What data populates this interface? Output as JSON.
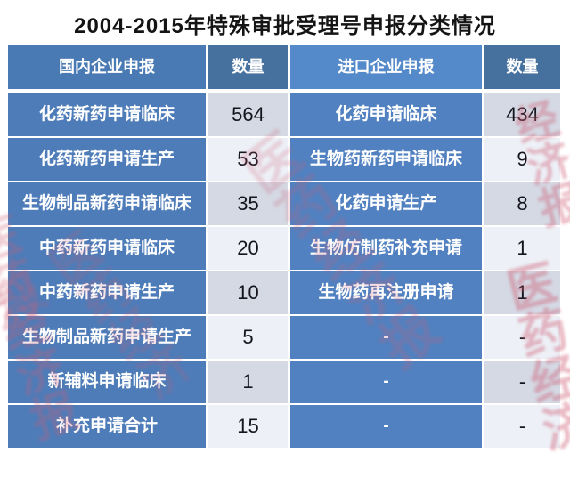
{
  "chart_data": {
    "type": "table",
    "title": "2004-2015年特殊审批受理号申报分类情况",
    "columns": [
      "国内企业申报",
      "数量",
      "进口企业申报",
      "数量"
    ],
    "rows": [
      [
        "化药新药申请临床",
        564,
        "化药申请临床",
        434
      ],
      [
        "化药新药申请生产",
        53,
        "生物药新药申请临床",
        9
      ],
      [
        "生物制品新药申请临床",
        35,
        "化药申请生产",
        8
      ],
      [
        "中药新药申请临床",
        20,
        "生物仿制药补充申请",
        1
      ],
      [
        "中药新药申请生产",
        10,
        "生物药再注册申请",
        1
      ],
      [
        "生物制品新药申请生产",
        5,
        "-",
        "-"
      ],
      [
        "新辅料申请临床",
        1,
        "-",
        "-"
      ],
      [
        "补充申请合计",
        15,
        "-",
        "-"
      ]
    ]
  },
  "watermark": {
    "text": "医药经济报",
    "short_text": "经济报",
    "mid_text": "医药经济",
    "color": "#cf5d74"
  },
  "colors": {
    "header_domestic_blue": "#4a7ab3",
    "header_qty_blue": "#46719f",
    "header_import_blue": "#548aca",
    "body_domestic_blue": "#4d7cb8",
    "body_import_blue": "#5181c0",
    "qty_dark_gray": "#d4d9e4",
    "qty_light_gray": "#edf1f7",
    "title_text": "#141414",
    "number_text": "#14141c"
  }
}
